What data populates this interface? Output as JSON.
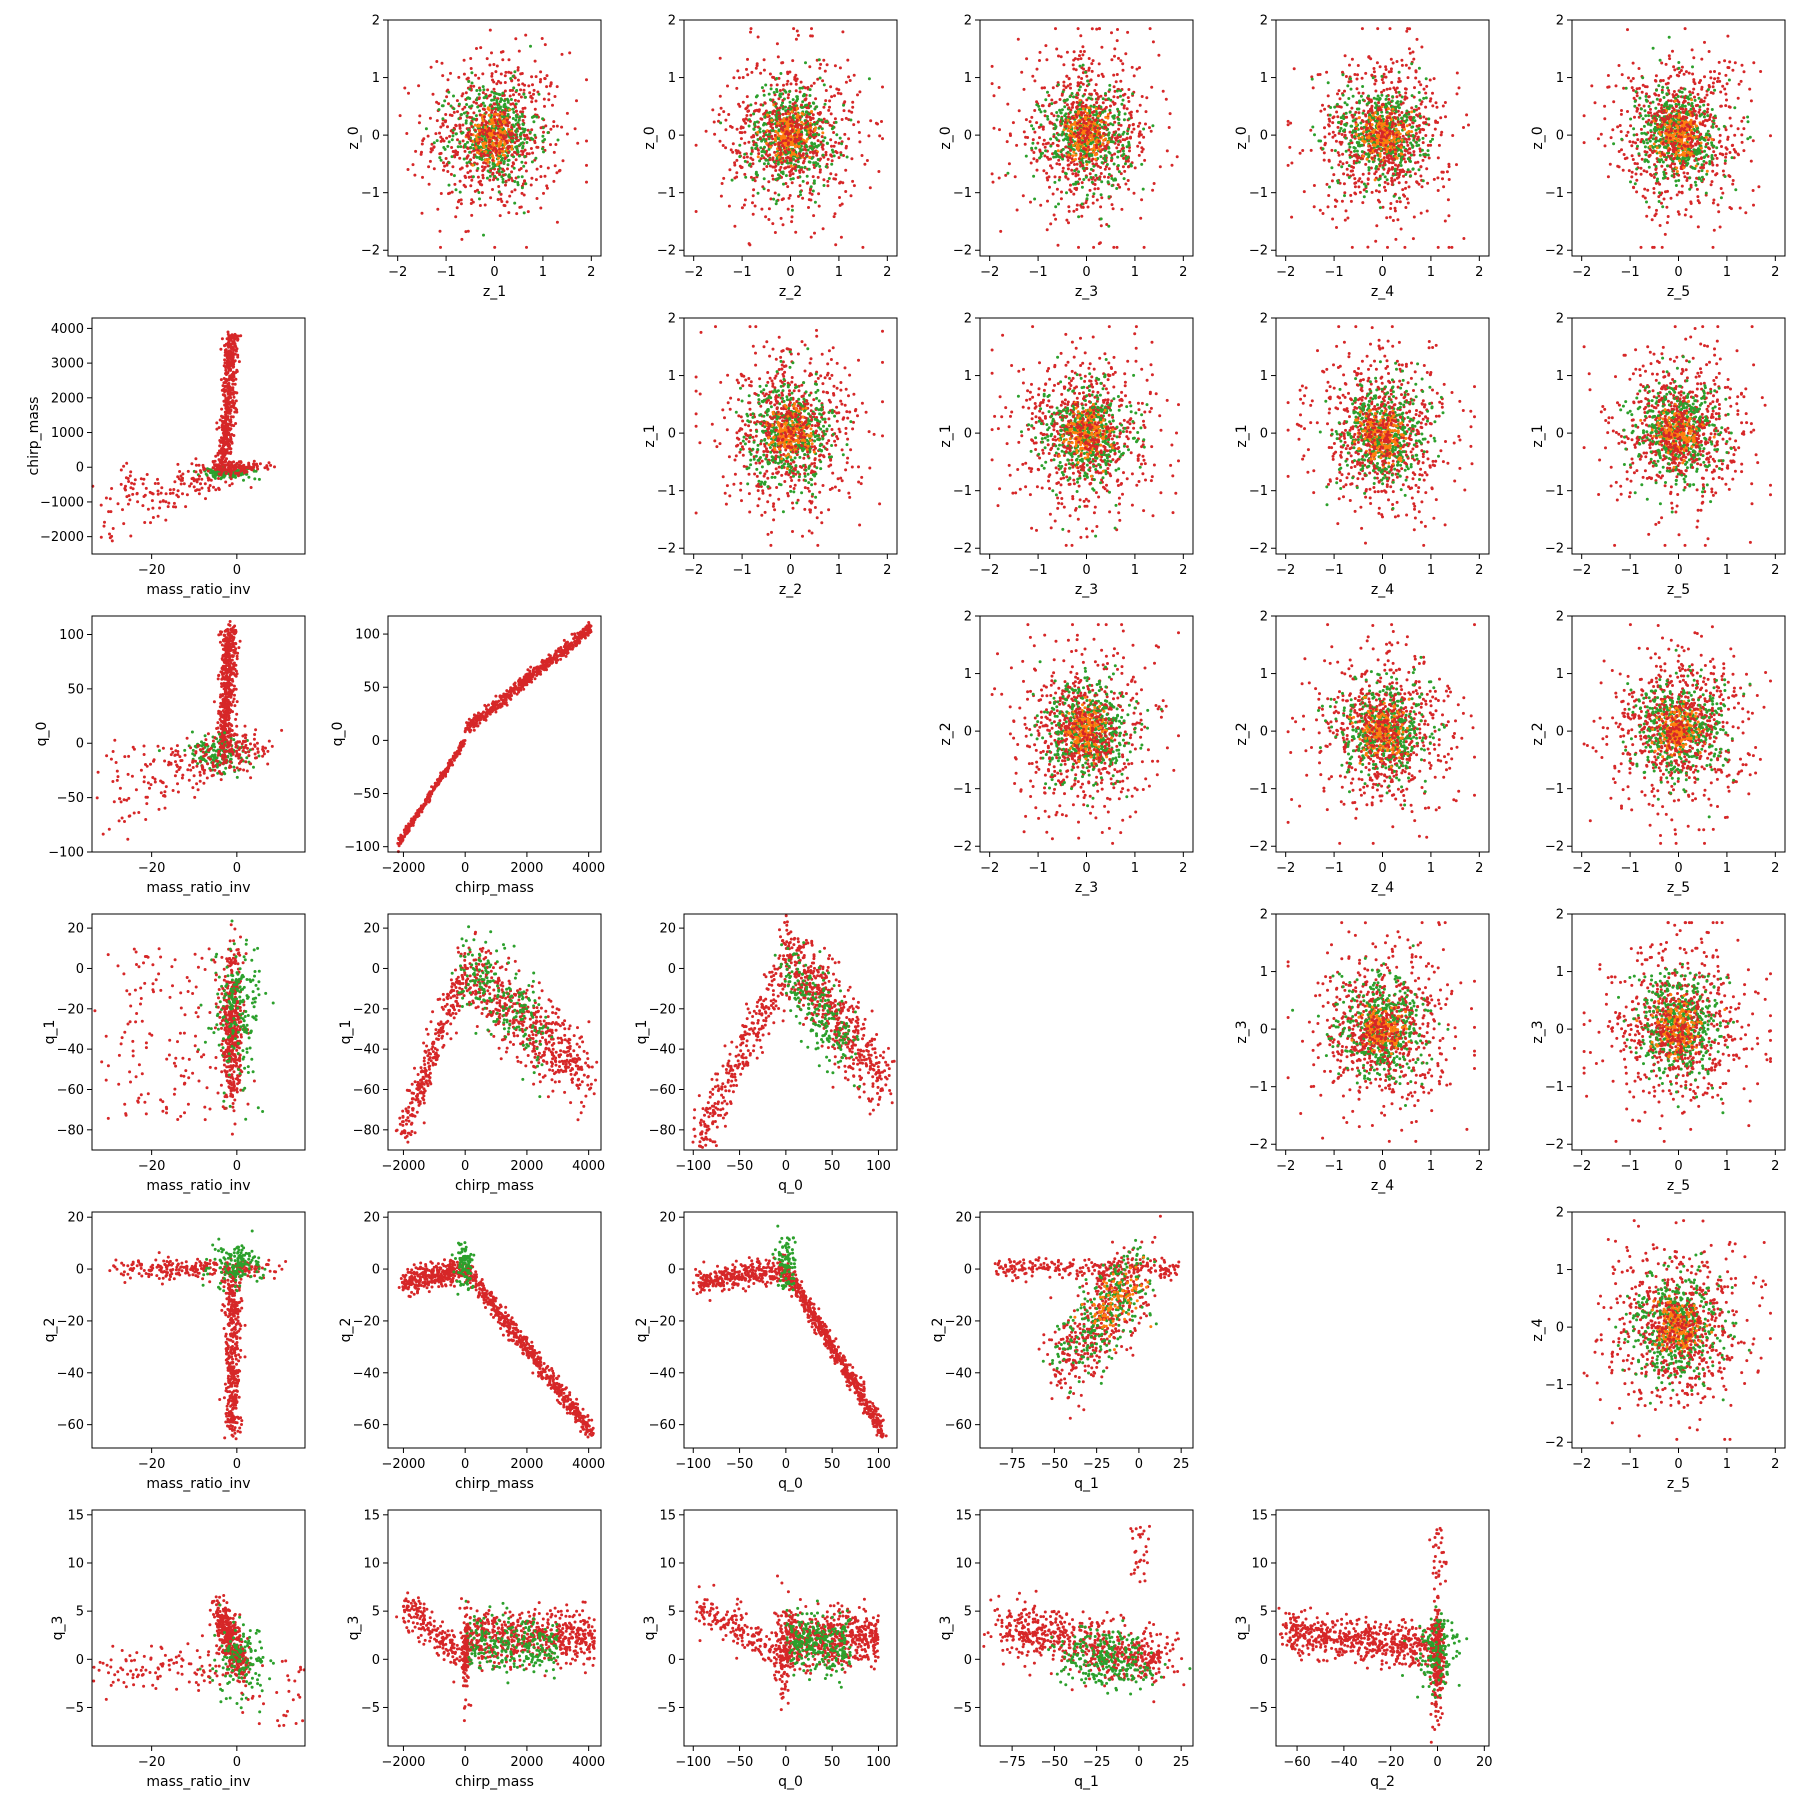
{
  "colors": {
    "red": "#d62728",
    "green": "#2ca02c",
    "orange": "#ff7f0e"
  },
  "chart_data": [
    {
      "type": "scatter",
      "title": "",
      "xlabel": "z_1",
      "ylabel": "z_0",
      "xlim": [
        -2.2,
        2.2
      ],
      "ylim": [
        -2.1,
        2.0
      ],
      "xticks": [
        -2,
        -1,
        0,
        1,
        2
      ],
      "yticks": [
        -2,
        -1,
        0,
        1,
        2
      ],
      "shape": "isotropic",
      "series": [
        {
          "name": "",
          "color": "#d62728"
        },
        {
          "name": "",
          "color": "#2ca02c"
        },
        {
          "name": "",
          "color": "#ff7f0e"
        }
      ]
    },
    {
      "type": "scatter",
      "title": "",
      "xlabel": "z_2",
      "ylabel": "z_0",
      "xlim": [
        -2.2,
        2.2
      ],
      "ylim": [
        -2.1,
        2.0
      ],
      "xticks": [
        -2,
        -1,
        0,
        1,
        2
      ],
      "yticks": [
        -2,
        -1,
        0,
        1,
        2
      ],
      "shape": "isotropic",
      "series": [
        {
          "name": "",
          "color": "#d62728"
        },
        {
          "name": "",
          "color": "#2ca02c"
        },
        {
          "name": "",
          "color": "#ff7f0e"
        }
      ]
    },
    {
      "type": "scatter",
      "title": "",
      "xlabel": "z_3",
      "ylabel": "z_0",
      "xlim": [
        -2.2,
        2.2
      ],
      "ylim": [
        -2.1,
        2.0
      ],
      "xticks": [
        -2,
        -1,
        0,
        1,
        2
      ],
      "yticks": [
        -2,
        -1,
        0,
        1,
        2
      ],
      "shape": "isotropic",
      "series": [
        {
          "name": "",
          "color": "#d62728"
        },
        {
          "name": "",
          "color": "#2ca02c"
        },
        {
          "name": "",
          "color": "#ff7f0e"
        }
      ]
    },
    {
      "type": "scatter",
      "title": "",
      "xlabel": "z_4",
      "ylabel": "z_0",
      "xlim": [
        -2.2,
        2.2
      ],
      "ylim": [
        -2.1,
        2.0
      ],
      "xticks": [
        -2,
        -1,
        0,
        1,
        2
      ],
      "yticks": [
        -2,
        -1,
        0,
        1,
        2
      ],
      "shape": "isotropic",
      "series": [
        {
          "name": "",
          "color": "#d62728"
        },
        {
          "name": "",
          "color": "#2ca02c"
        },
        {
          "name": "",
          "color": "#ff7f0e"
        }
      ]
    },
    {
      "type": "scatter",
      "title": "",
      "xlabel": "z_5",
      "ylabel": "z_0",
      "xlim": [
        -2.2,
        2.2
      ],
      "ylim": [
        -2.1,
        2.0
      ],
      "xticks": [
        -2,
        -1,
        0,
        1,
        2
      ],
      "yticks": [
        -2,
        -1,
        0,
        1,
        2
      ],
      "shape": "isotropic",
      "series": [
        {
          "name": "",
          "color": "#d62728"
        },
        {
          "name": "",
          "color": "#2ca02c"
        },
        {
          "name": "",
          "color": "#ff7f0e"
        }
      ]
    },
    {
      "type": "scatter",
      "title": "",
      "xlabel": "mass_ratio_inv",
      "ylabel": "chirp_mass",
      "xlim": [
        -34,
        16
      ],
      "ylim": [
        -2500,
        4300
      ],
      "xticks": [
        -20,
        0
      ],
      "yticks": [
        -2000,
        -1000,
        0,
        1000,
        2000,
        3000,
        4000
      ],
      "shape": "mri_chirp",
      "series": [
        {
          "name": "",
          "color": "#d62728"
        },
        {
          "name": "",
          "color": "#2ca02c"
        }
      ]
    },
    {
      "type": "scatter",
      "title": "",
      "xlabel": "z_2",
      "ylabel": "z_1",
      "xlim": [
        -2.2,
        2.2
      ],
      "ylim": [
        -2.1,
        2.0
      ],
      "xticks": [
        -2,
        -1,
        0,
        1,
        2
      ],
      "yticks": [
        -2,
        -1,
        0,
        1,
        2
      ],
      "shape": "isotropic",
      "series": [
        {
          "name": "",
          "color": "#d62728"
        },
        {
          "name": "",
          "color": "#2ca02c"
        },
        {
          "name": "",
          "color": "#ff7f0e"
        }
      ]
    },
    {
      "type": "scatter",
      "title": "",
      "xlabel": "z_3",
      "ylabel": "z_1",
      "xlim": [
        -2.2,
        2.2
      ],
      "ylim": [
        -2.1,
        2.0
      ],
      "xticks": [
        -2,
        -1,
        0,
        1,
        2
      ],
      "yticks": [
        -2,
        -1,
        0,
        1,
        2
      ],
      "shape": "isotropic",
      "series": [
        {
          "name": "",
          "color": "#d62728"
        },
        {
          "name": "",
          "color": "#2ca02c"
        },
        {
          "name": "",
          "color": "#ff7f0e"
        }
      ]
    },
    {
      "type": "scatter",
      "title": "",
      "xlabel": "z_4",
      "ylabel": "z_1",
      "xlim": [
        -2.2,
        2.2
      ],
      "ylim": [
        -2.1,
        2.0
      ],
      "xticks": [
        -2,
        -1,
        0,
        1,
        2
      ],
      "yticks": [
        -2,
        -1,
        0,
        1,
        2
      ],
      "shape": "isotropic",
      "series": [
        {
          "name": "",
          "color": "#d62728"
        },
        {
          "name": "",
          "color": "#2ca02c"
        },
        {
          "name": "",
          "color": "#ff7f0e"
        }
      ]
    },
    {
      "type": "scatter",
      "title": "",
      "xlabel": "z_5",
      "ylabel": "z_1",
      "xlim": [
        -2.2,
        2.2
      ],
      "ylim": [
        -2.1,
        2.0
      ],
      "xticks": [
        -2,
        -1,
        0,
        1,
        2
      ],
      "yticks": [
        -2,
        -1,
        0,
        1,
        2
      ],
      "shape": "isotropic",
      "series": [
        {
          "name": "",
          "color": "#d62728"
        },
        {
          "name": "",
          "color": "#2ca02c"
        },
        {
          "name": "",
          "color": "#ff7f0e"
        }
      ]
    },
    {
      "type": "scatter",
      "title": "",
      "xlabel": "mass_ratio_inv",
      "ylabel": "q_0",
      "xlim": [
        -34,
        16
      ],
      "ylim": [
        -100,
        117
      ],
      "xticks": [
        -20,
        0
      ],
      "yticks": [
        -100,
        -50,
        0,
        50,
        100
      ],
      "shape": "mri_q0",
      "series": [
        {
          "name": "",
          "color": "#d62728"
        },
        {
          "name": "",
          "color": "#2ca02c"
        }
      ]
    },
    {
      "type": "scatter",
      "title": "",
      "xlabel": "chirp_mass",
      "ylabel": "q_0",
      "xlim": [
        -2500,
        4400
      ],
      "ylim": [
        -105,
        117
      ],
      "xticks": [
        -2000,
        0,
        2000,
        4000
      ],
      "yticks": [
        -100,
        -50,
        0,
        50,
        100
      ],
      "shape": "chirp_q0",
      "series": [
        {
          "name": "",
          "color": "#d62728"
        }
      ]
    },
    {
      "type": "scatter",
      "title": "",
      "xlabel": "z_3",
      "ylabel": "z_2",
      "xlim": [
        -2.2,
        2.2
      ],
      "ylim": [
        -2.1,
        2.0
      ],
      "xticks": [
        -2,
        -1,
        0,
        1,
        2
      ],
      "yticks": [
        -2,
        -1,
        0,
        1,
        2
      ],
      "shape": "isotropic",
      "series": [
        {
          "name": "",
          "color": "#d62728"
        },
        {
          "name": "",
          "color": "#2ca02c"
        },
        {
          "name": "",
          "color": "#ff7f0e"
        }
      ]
    },
    {
      "type": "scatter",
      "title": "",
      "xlabel": "z_4",
      "ylabel": "z_2",
      "xlim": [
        -2.2,
        2.2
      ],
      "ylim": [
        -2.1,
        2.0
      ],
      "xticks": [
        -2,
        -1,
        0,
        1,
        2
      ],
      "yticks": [
        -2,
        -1,
        0,
        1,
        2
      ],
      "shape": "isotropic",
      "series": [
        {
          "name": "",
          "color": "#d62728"
        },
        {
          "name": "",
          "color": "#2ca02c"
        },
        {
          "name": "",
          "color": "#ff7f0e"
        }
      ]
    },
    {
      "type": "scatter",
      "title": "",
      "xlabel": "z_5",
      "ylabel": "z_2",
      "xlim": [
        -2.2,
        2.2
      ],
      "ylim": [
        -2.1,
        2.0
      ],
      "xticks": [
        -2,
        -1,
        0,
        1,
        2
      ],
      "yticks": [
        -2,
        -1,
        0,
        1,
        2
      ],
      "shape": "isotropic",
      "series": [
        {
          "name": "",
          "color": "#d62728"
        },
        {
          "name": "",
          "color": "#2ca02c"
        },
        {
          "name": "",
          "color": "#ff7f0e"
        }
      ]
    },
    {
      "type": "scatter",
      "title": "",
      "xlabel": "mass_ratio_inv",
      "ylabel": "q_1",
      "xlim": [
        -34,
        16
      ],
      "ylim": [
        -90,
        27
      ],
      "xticks": [
        -20,
        0
      ],
      "yticks": [
        -80,
        -60,
        -40,
        -20,
        0,
        20
      ],
      "shape": "mri_q1",
      "series": [
        {
          "name": "",
          "color": "#d62728"
        },
        {
          "name": "",
          "color": "#2ca02c"
        }
      ]
    },
    {
      "type": "scatter",
      "title": "",
      "xlabel": "chirp_mass",
      "ylabel": "q_1",
      "xlim": [
        -2500,
        4400
      ],
      "ylim": [
        -90,
        27
      ],
      "xticks": [
        -2000,
        0,
        2000,
        4000
      ],
      "yticks": [
        -80,
        -60,
        -40,
        -20,
        0,
        20
      ],
      "shape": "chirp_q1",
      "series": [
        {
          "name": "",
          "color": "#d62728"
        },
        {
          "name": "",
          "color": "#2ca02c"
        }
      ]
    },
    {
      "type": "scatter",
      "title": "",
      "xlabel": "q_0",
      "ylabel": "q_1",
      "xlim": [
        -110,
        120
      ],
      "ylim": [
        -90,
        27
      ],
      "xticks": [
        -100,
        -50,
        0,
        50,
        100
      ],
      "yticks": [
        -80,
        -60,
        -40,
        -20,
        0,
        20
      ],
      "shape": "q0_q1",
      "series": [
        {
          "name": "",
          "color": "#d62728"
        },
        {
          "name": "",
          "color": "#2ca02c"
        }
      ]
    },
    {
      "type": "scatter",
      "title": "",
      "xlabel": "z_4",
      "ylabel": "z_3",
      "xlim": [
        -2.2,
        2.2
      ],
      "ylim": [
        -2.1,
        2.0
      ],
      "xticks": [
        -2,
        -1,
        0,
        1,
        2
      ],
      "yticks": [
        -2,
        -1,
        0,
        1,
        2
      ],
      "shape": "isotropic",
      "series": [
        {
          "name": "",
          "color": "#d62728"
        },
        {
          "name": "",
          "color": "#2ca02c"
        },
        {
          "name": "",
          "color": "#ff7f0e"
        }
      ]
    },
    {
      "type": "scatter",
      "title": "",
      "xlabel": "z_5",
      "ylabel": "z_3",
      "xlim": [
        -2.2,
        2.2
      ],
      "ylim": [
        -2.1,
        2.0
      ],
      "xticks": [
        -2,
        -1,
        0,
        1,
        2
      ],
      "yticks": [
        -2,
        -1,
        0,
        1,
        2
      ],
      "shape": "isotropic",
      "series": [
        {
          "name": "",
          "color": "#d62728"
        },
        {
          "name": "",
          "color": "#2ca02c"
        },
        {
          "name": "",
          "color": "#ff7f0e"
        }
      ]
    },
    {
      "type": "scatter",
      "title": "",
      "xlabel": "mass_ratio_inv",
      "ylabel": "q_2",
      "xlim": [
        -34,
        16
      ],
      "ylim": [
        -69,
        22
      ],
      "xticks": [
        -20,
        0
      ],
      "yticks": [
        -60,
        -40,
        -20,
        0,
        20
      ],
      "shape": "mri_q2",
      "series": [
        {
          "name": "",
          "color": "#d62728"
        },
        {
          "name": "",
          "color": "#2ca02c"
        }
      ]
    },
    {
      "type": "scatter",
      "title": "",
      "xlabel": "chirp_mass",
      "ylabel": "q_2",
      "xlim": [
        -2500,
        4400
      ],
      "ylim": [
        -69,
        22
      ],
      "xticks": [
        -2000,
        0,
        2000,
        4000
      ],
      "yticks": [
        -60,
        -40,
        -20,
        0,
        20
      ],
      "shape": "chirp_q2",
      "series": [
        {
          "name": "",
          "color": "#d62728"
        },
        {
          "name": "",
          "color": "#2ca02c"
        }
      ]
    },
    {
      "type": "scatter",
      "title": "",
      "xlabel": "q_0",
      "ylabel": "q_2",
      "xlim": [
        -110,
        120
      ],
      "ylim": [
        -69,
        22
      ],
      "xticks": [
        -100,
        -50,
        0,
        50,
        100
      ],
      "yticks": [
        -60,
        -40,
        -20,
        0,
        20
      ],
      "shape": "q0_q2",
      "series": [
        {
          "name": "",
          "color": "#d62728"
        },
        {
          "name": "",
          "color": "#2ca02c"
        }
      ]
    },
    {
      "type": "scatter",
      "title": "",
      "xlabel": "q_1",
      "ylabel": "q_2",
      "xlim": [
        -94,
        32
      ],
      "ylim": [
        -69,
        22
      ],
      "xticks": [
        -75,
        -50,
        -25,
        0,
        25
      ],
      "yticks": [
        -60,
        -40,
        -20,
        0,
        20
      ],
      "shape": "q1_q2",
      "series": [
        {
          "name": "",
          "color": "#d62728"
        },
        {
          "name": "",
          "color": "#2ca02c"
        },
        {
          "name": "",
          "color": "#ff7f0e"
        }
      ]
    },
    {
      "type": "scatter",
      "title": "",
      "xlabel": "z_5",
      "ylabel": "z_4",
      "xlim": [
        -2.2,
        2.2
      ],
      "ylim": [
        -2.1,
        2.0
      ],
      "xticks": [
        -2,
        -1,
        0,
        1,
        2
      ],
      "yticks": [
        -2,
        -1,
        0,
        1,
        2
      ],
      "shape": "isotropic",
      "series": [
        {
          "name": "",
          "color": "#d62728"
        },
        {
          "name": "",
          "color": "#2ca02c"
        },
        {
          "name": "",
          "color": "#ff7f0e"
        }
      ]
    },
    {
      "type": "scatter",
      "title": "",
      "xlabel": "mass_ratio_inv",
      "ylabel": "q_3",
      "xlim": [
        -34,
        16
      ],
      "ylim": [
        -9,
        15.5
      ],
      "xticks": [
        -20,
        0
      ],
      "yticks": [
        -5,
        0,
        5,
        10,
        15
      ],
      "shape": "mri_q3",
      "series": [
        {
          "name": "",
          "color": "#d62728"
        },
        {
          "name": "",
          "color": "#2ca02c"
        }
      ]
    },
    {
      "type": "scatter",
      "title": "",
      "xlabel": "chirp_mass",
      "ylabel": "q_3",
      "xlim": [
        -2500,
        4400
      ],
      "ylim": [
        -9,
        15.5
      ],
      "xticks": [
        -2000,
        0,
        2000,
        4000
      ],
      "yticks": [
        -5,
        0,
        5,
        10,
        15
      ],
      "shape": "chirp_q3",
      "series": [
        {
          "name": "",
          "color": "#d62728"
        },
        {
          "name": "",
          "color": "#2ca02c"
        }
      ]
    },
    {
      "type": "scatter",
      "title": "",
      "xlabel": "q_0",
      "ylabel": "q_3",
      "xlim": [
        -110,
        120
      ],
      "ylim": [
        -9,
        15.5
      ],
      "xticks": [
        -100,
        -50,
        0,
        50,
        100
      ],
      "yticks": [
        -5,
        0,
        5,
        10,
        15
      ],
      "shape": "q0_q3",
      "series": [
        {
          "name": "",
          "color": "#d62728"
        },
        {
          "name": "",
          "color": "#2ca02c"
        }
      ]
    },
    {
      "type": "scatter",
      "title": "",
      "xlabel": "q_1",
      "ylabel": "q_3",
      "xlim": [
        -94,
        32
      ],
      "ylim": [
        -9,
        15.5
      ],
      "xticks": [
        -75,
        -50,
        -25,
        0,
        25
      ],
      "yticks": [
        -5,
        0,
        5,
        10,
        15
      ],
      "shape": "q1_q3",
      "series": [
        {
          "name": "",
          "color": "#d62728"
        },
        {
          "name": "",
          "color": "#2ca02c"
        }
      ]
    },
    {
      "type": "scatter",
      "title": "",
      "xlabel": "q_2",
      "ylabel": "q_3",
      "xlim": [
        -69,
        22
      ],
      "ylim": [
        -9,
        15.5
      ],
      "xticks": [
        -60,
        -40,
        -20,
        0,
        20
      ],
      "yticks": [
        -5,
        0,
        5,
        10,
        15
      ],
      "shape": "q2_q3",
      "series": [
        {
          "name": "",
          "color": "#d62728"
        },
        {
          "name": "",
          "color": "#2ca02c"
        }
      ]
    }
  ]
}
